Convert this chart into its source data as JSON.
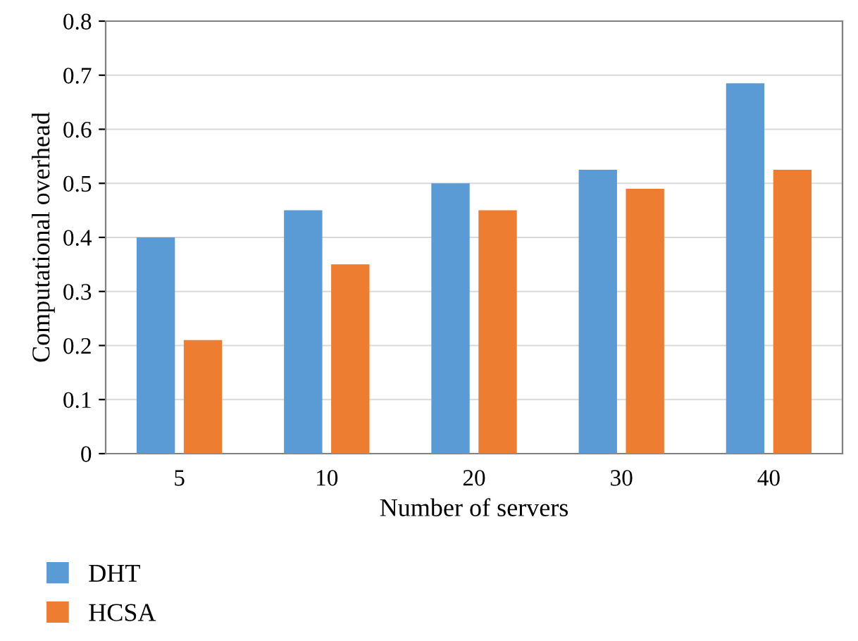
{
  "chart_data": {
    "type": "bar",
    "xlabel": "Number of servers",
    "ylabel": "Computational overhead",
    "categories": [
      "5",
      "10",
      "20",
      "30",
      "40"
    ],
    "series": [
      {
        "name": "DHT",
        "color": "#5b9bd5",
        "values": [
          0.4,
          0.45,
          0.5,
          0.525,
          0.685
        ]
      },
      {
        "name": "HCSA",
        "color": "#ed7d31",
        "values": [
          0.21,
          0.35,
          0.45,
          0.49,
          0.525
        ]
      }
    ],
    "ylim": [
      0,
      0.8
    ],
    "yticks": [
      0,
      0.1,
      0.2,
      0.3,
      0.4,
      0.5,
      0.6,
      0.7,
      0.8
    ],
    "grid": "y",
    "legend": "bottom left"
  }
}
